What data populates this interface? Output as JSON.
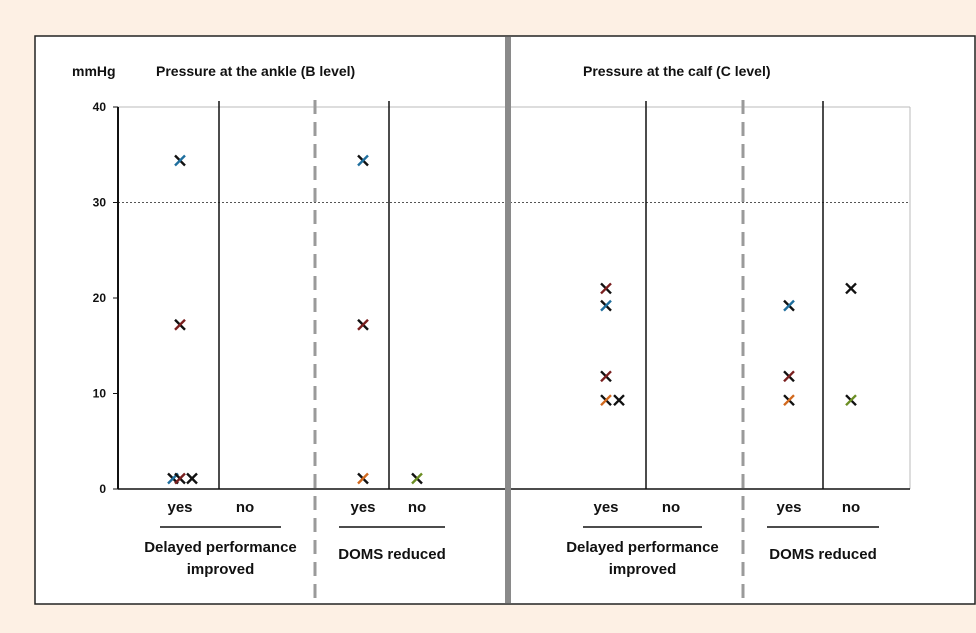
{
  "chart_data": {
    "type": "scatter",
    "ylabel": "mmHg",
    "ylim": [
      0,
      40
    ],
    "yticks": [
      0,
      10,
      20,
      30,
      40
    ],
    "reference_line": 30,
    "grid": false,
    "panels": [
      {
        "title": "Pressure at the ankle (B level)",
        "groups": [
          {
            "label_lines": [
              "Delayed performance",
              "improved"
            ],
            "categories": [
              "yes",
              "no"
            ],
            "points": [
              {
                "category": "yes",
                "y": 34.4,
                "offset": 0,
                "color": "#1f6f9e"
              },
              {
                "category": "yes",
                "y": 17.2,
                "offset": 0,
                "color": "#7a1f1f"
              },
              {
                "category": "yes",
                "y": 1.1,
                "offset": -0.35,
                "color": "#1f6f9e"
              },
              {
                "category": "yes",
                "y": 1.1,
                "offset": 0,
                "color": "#7a1f1f"
              },
              {
                "category": "yes",
                "y": 1.1,
                "offset": 0.6,
                "color": "#111111"
              }
            ]
          },
          {
            "label_lines": [
              "DOMS reduced"
            ],
            "categories": [
              "yes",
              "no"
            ],
            "points": [
              {
                "category": "yes",
                "y": 34.4,
                "offset": 0,
                "color": "#1f6f9e"
              },
              {
                "category": "yes",
                "y": 17.2,
                "offset": 0,
                "color": "#7a1f1f"
              },
              {
                "category": "yes",
                "y": 1.1,
                "offset": 0,
                "color": "#d2691e"
              },
              {
                "category": "no",
                "y": 1.1,
                "offset": 0,
                "color": "#6b8e23"
              }
            ]
          }
        ]
      },
      {
        "title": "Pressure at the calf (C level)",
        "groups": [
          {
            "label_lines": [
              "Delayed performance",
              "improved"
            ],
            "categories": [
              "yes",
              "no"
            ],
            "points": [
              {
                "category": "yes",
                "y": 21.0,
                "offset": 0,
                "color": "#7a1f1f"
              },
              {
                "category": "yes",
                "y": 19.2,
                "offset": 0,
                "color": "#1f6f9e"
              },
              {
                "category": "yes",
                "y": 11.8,
                "offset": 0,
                "color": "#7a1f1f"
              },
              {
                "category": "yes",
                "y": 9.3,
                "offset": 0,
                "color": "#d2691e"
              },
              {
                "category": "yes",
                "y": 9.3,
                "offset": 0.65,
                "color": "#111111"
              }
            ]
          },
          {
            "label_lines": [
              "DOMS reduced"
            ],
            "categories": [
              "yes",
              "no"
            ],
            "points": [
              {
                "category": "yes",
                "y": 19.2,
                "offset": 0,
                "color": "#1f6f9e"
              },
              {
                "category": "yes",
                "y": 11.8,
                "offset": 0,
                "color": "#7a1f1f"
              },
              {
                "category": "yes",
                "y": 9.3,
                "offset": 0,
                "color": "#d2691e"
              },
              {
                "category": "no",
                "y": 21.0,
                "offset": 0,
                "color": "#111111"
              },
              {
                "category": "no",
                "y": 9.3,
                "offset": 0,
                "color": "#6b8e23"
              }
            ]
          }
        ]
      }
    ]
  }
}
